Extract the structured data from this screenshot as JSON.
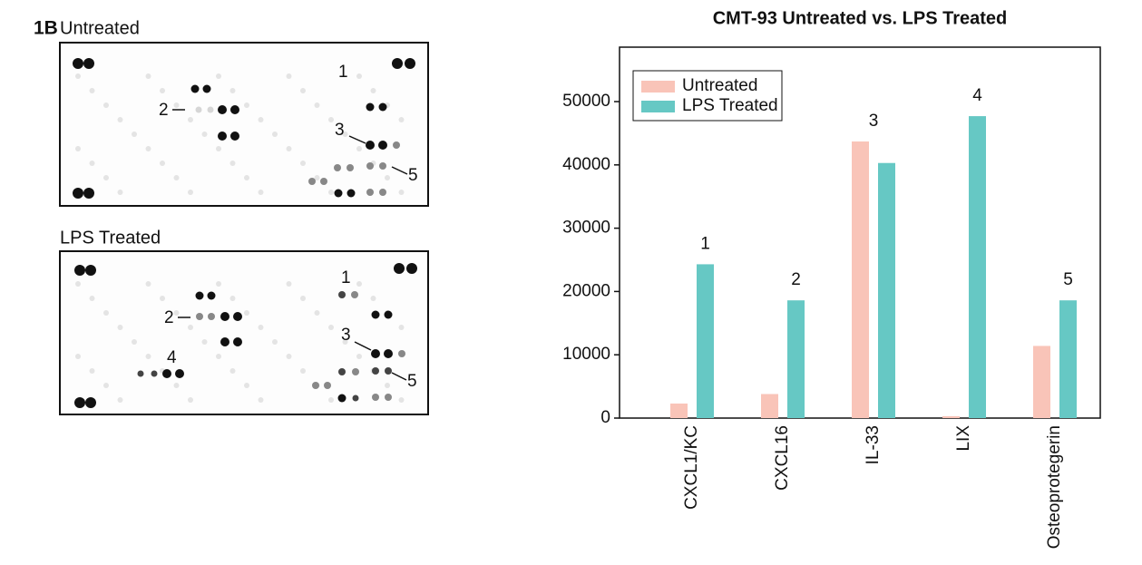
{
  "panel_label": "1B",
  "blots": [
    {
      "title": "Untreated",
      "labels": [
        "1",
        "2",
        "3",
        "5"
      ]
    },
    {
      "title": "LPS Treated",
      "labels": [
        "1",
        "2",
        "3",
        "4",
        "5"
      ]
    }
  ],
  "chart_data": {
    "type": "bar",
    "title": "CMT-93 Untreated vs. LPS Treated",
    "categories": [
      "CXCL1/KC",
      "CXCL16",
      "IL-33",
      "LIX",
      "Osteoprotegerin"
    ],
    "series": [
      {
        "name": "Untreated",
        "color": "#f9c4b8",
        "values": [
          2300,
          3800,
          43700,
          300,
          11400
        ]
      },
      {
        "name": "LPS Treated",
        "color": "#66c8c4",
        "values": [
          24300,
          18600,
          40300,
          47700,
          18600
        ]
      }
    ],
    "annotations": [
      "1",
      "2",
      "3",
      "4",
      "5"
    ],
    "ylim": [
      0,
      58600
    ],
    "yticks": [
      0,
      10000,
      20000,
      30000,
      40000,
      50000
    ],
    "legend": "upper left"
  }
}
